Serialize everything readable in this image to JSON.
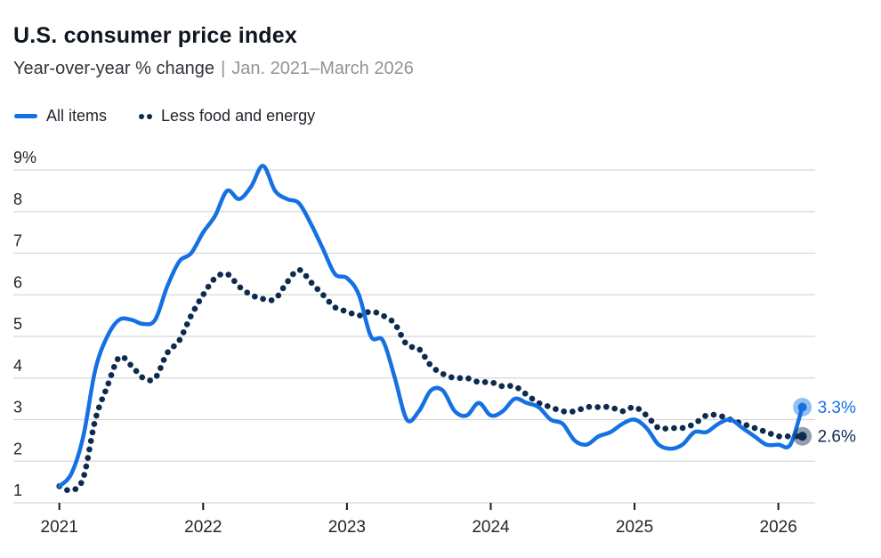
{
  "header": {
    "title": "U.S. consumer price index",
    "subtitle_measure": "Year-over-year % change",
    "subtitle_separator": "|",
    "subtitle_range": "Jan. 2021–March 2026"
  },
  "legend": [
    {
      "label": "All items",
      "swatch": "solid-line",
      "color": "#1571e2"
    },
    {
      "label": "Less food and energy",
      "swatch": "dots",
      "color": "#0d2a50"
    }
  ],
  "colors": {
    "accent_blue": "#1571e2",
    "navy": "#0d2a50",
    "gridline": "#d6d7d8",
    "axis_text": "#21272e",
    "subtitle_gray": "#909396",
    "tick_mark": "#16191d"
  },
  "chart_data": {
    "type": "line",
    "title": "U.S. consumer price index",
    "subtitle": "Year-over-year % change | Jan. 2021–March 2026",
    "x_unit": "month",
    "x_start": "2021-01",
    "x_end": "2026-03",
    "months_per_year": 12,
    "x_tick_labels": [
      "2021",
      "2022",
      "2023",
      "2024",
      "2025",
      "2026"
    ],
    "y_tick_labels": [
      "9%",
      "8",
      "7",
      "6",
      "5",
      "4",
      "3",
      "2",
      "1"
    ],
    "y_tick_values": [
      9,
      8,
      7,
      6,
      5,
      4,
      3,
      2,
      1
    ],
    "ylim": [
      1,
      9
    ],
    "grid": true,
    "legend_position": "top-left",
    "series": [
      {
        "name": "All items",
        "style": "solid",
        "color": "#1571e2",
        "end_label": "3.3%",
        "values": [
          1.4,
          1.7,
          2.6,
          4.2,
          5.0,
          5.4,
          5.4,
          5.3,
          5.4,
          6.2,
          6.8,
          7.0,
          7.5,
          7.9,
          8.5,
          8.3,
          8.6,
          9.1,
          8.5,
          8.3,
          8.2,
          7.7,
          7.1,
          6.5,
          6.4,
          6.0,
          5.0,
          4.9,
          4.0,
          3.0,
          3.2,
          3.7,
          3.7,
          3.2,
          3.1,
          3.4,
          3.1,
          3.2,
          3.5,
          3.4,
          3.3,
          3.0,
          2.9,
          2.5,
          2.4,
          2.6,
          2.7,
          2.9,
          3.0,
          2.8,
          2.4,
          2.3,
          2.4,
          2.7,
          2.7,
          2.9,
          3.0,
          2.8,
          2.6,
          2.4,
          2.4,
          2.4,
          3.3
        ]
      },
      {
        "name": "Less food and energy",
        "style": "dotted",
        "color": "#0d2a50",
        "end_label": "2.6%",
        "values": [
          1.4,
          1.3,
          1.6,
          3.0,
          3.8,
          4.5,
          4.3,
          4.0,
          4.0,
          4.6,
          4.9,
          5.5,
          6.0,
          6.4,
          6.5,
          6.2,
          6.0,
          5.9,
          5.9,
          6.3,
          6.6,
          6.3,
          6.0,
          5.7,
          5.6,
          5.5,
          5.6,
          5.5,
          5.3,
          4.8,
          4.7,
          4.3,
          4.1,
          4.0,
          4.0,
          3.9,
          3.9,
          3.8,
          3.8,
          3.6,
          3.4,
          3.3,
          3.2,
          3.2,
          3.3,
          3.3,
          3.3,
          3.2,
          3.3,
          3.1,
          2.8,
          2.8,
          2.8,
          2.9,
          3.1,
          3.1,
          3.0,
          2.9,
          2.8,
          2.7,
          2.6,
          2.6,
          2.6
        ]
      }
    ]
  }
}
